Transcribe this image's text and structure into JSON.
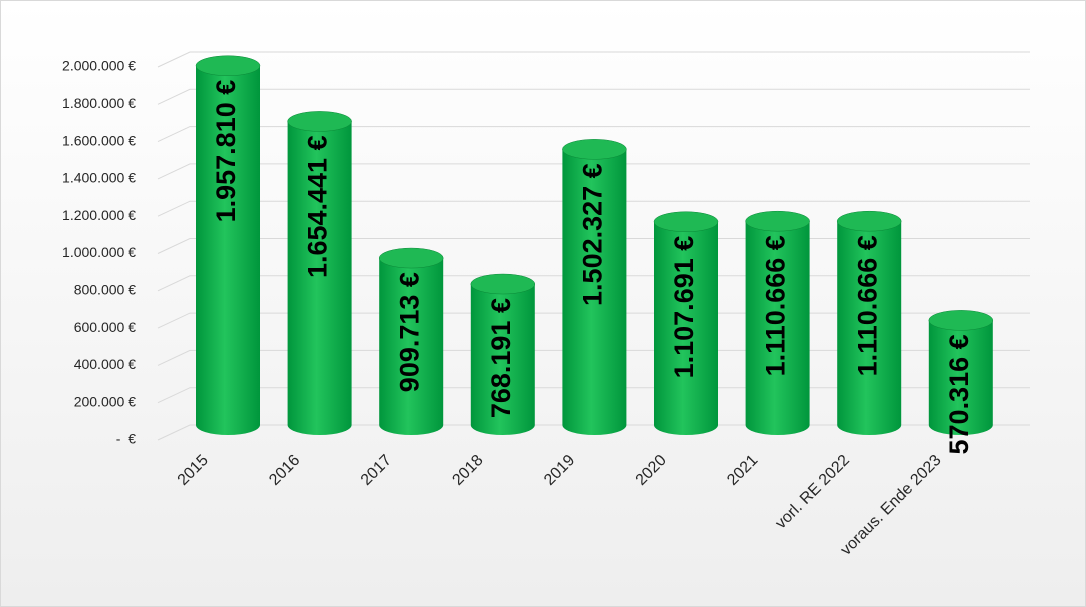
{
  "chart_data": {
    "type": "bar",
    "categories": [
      "2015",
      "2016",
      "2017",
      "2018",
      "2019",
      "2020",
      "2021",
      "vorl. RE 2022",
      "voraus. Ende 2023"
    ],
    "values": [
      1957810,
      1654441,
      909713,
      768191,
      1502327,
      1107691,
      1110666,
      1110666,
      570316
    ],
    "value_labels": [
      "1.957.810 €",
      "1.654.441 €",
      "909.713 €",
      "768.191 €",
      "1.502.327 €",
      "1.107.691 €",
      "1.110.666 €",
      "1.110.666 €",
      "570.316 €"
    ],
    "color": "#00b050",
    "ylim": [
      0,
      2000000
    ],
    "yticks": [
      {
        "value": 0,
        "label": "-  €"
      },
      {
        "value": 200000,
        "label": "200.000 €"
      },
      {
        "value": 400000,
        "label": "400.000 €"
      },
      {
        "value": 600000,
        "label": "600.000 €"
      },
      {
        "value": 800000,
        "label": "800.000 €"
      },
      {
        "value": 1000000,
        "label": "1.000.000 €"
      },
      {
        "value": 1200000,
        "label": "1.200.000 €"
      },
      {
        "value": 1400000,
        "label": "1.400.000 €"
      },
      {
        "value": 1600000,
        "label": "1.600.000 €"
      },
      {
        "value": 1800000,
        "label": "1.800.000 €"
      },
      {
        "value": 2000000,
        "label": "2.000.000 €"
      }
    ],
    "grid": true
  }
}
